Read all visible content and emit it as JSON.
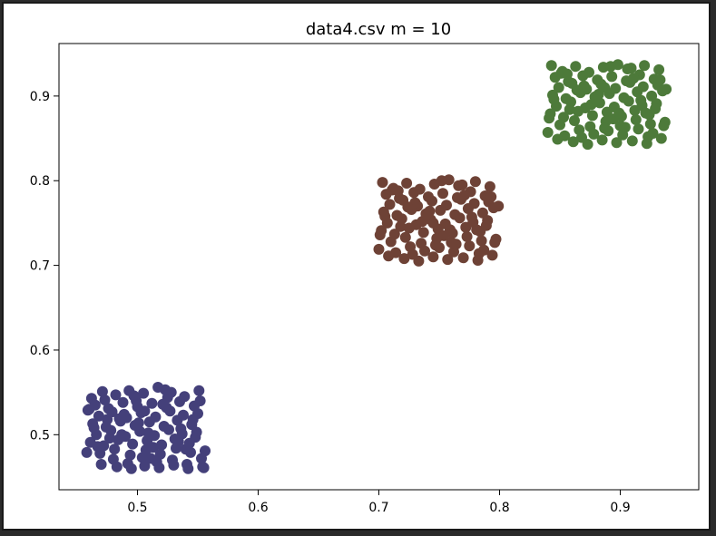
{
  "chart_data": {
    "type": "scatter",
    "title": "data4.csv m = 10",
    "xlabel": "",
    "ylabel": "",
    "xlim": [
      0.435,
      0.965
    ],
    "ylim": [
      0.435,
      0.962
    ],
    "xticks": [
      0.5,
      0.6,
      0.7,
      0.8,
      0.9
    ],
    "xtick_labels": [
      "0.5",
      "0.6",
      "0.7",
      "0.8",
      "0.9"
    ],
    "yticks": [
      0.5,
      0.6,
      0.7,
      0.8,
      0.9
    ],
    "ytick_labels": [
      "0.5",
      "0.6",
      "0.7",
      "0.8",
      "0.9"
    ],
    "grid": false,
    "legend": "none",
    "series": [
      {
        "color": "#44407a",
        "x": [
          0.462,
          0.471,
          0.482,
          0.493,
          0.505,
          0.517,
          0.528,
          0.539,
          0.551,
          0.465,
          0.476,
          0.488,
          0.5,
          0.512,
          0.524,
          0.535,
          0.547,
          0.468,
          0.479,
          0.491,
          0.503,
          0.515,
          0.527,
          0.538,
          0.55,
          0.463,
          0.474,
          0.486,
          0.498,
          0.51,
          0.522,
          0.533,
          0.545,
          0.466,
          0.478,
          0.49,
          0.502,
          0.514,
          0.526,
          0.537,
          0.549,
          0.461,
          0.472,
          0.484,
          0.496,
          0.508,
          0.52,
          0.531,
          0.543,
          0.469,
          0.481,
          0.494,
          0.507,
          0.519,
          0.532,
          0.544,
          0.556,
          0.459,
          0.473,
          0.485,
          0.497,
          0.509,
          0.521,
          0.534,
          0.546,
          0.467,
          0.48,
          0.492,
          0.504,
          0.516,
          0.529,
          0.541,
          0.553,
          0.464,
          0.477,
          0.489,
          0.501,
          0.513,
          0.525,
          0.536,
          0.548,
          0.47,
          0.483,
          0.495,
          0.506,
          0.518,
          0.53,
          0.542,
          0.554,
          0.46,
          0.475,
          0.487,
          0.499,
          0.511,
          0.523,
          0.54,
          0.552,
          0.458,
          0.555,
          0.506
        ],
        "y": [
          0.543,
          0.551,
          0.547,
          0.552,
          0.549,
          0.556,
          0.55,
          0.545,
          0.552,
          0.535,
          0.531,
          0.538,
          0.533,
          0.537,
          0.532,
          0.539,
          0.534,
          0.522,
          0.527,
          0.52,
          0.526,
          0.521,
          0.528,
          0.523,
          0.525,
          0.513,
          0.509,
          0.516,
          0.511,
          0.515,
          0.51,
          0.517,
          0.512,
          0.5,
          0.505,
          0.498,
          0.504,
          0.499,
          0.506,
          0.501,
          0.503,
          0.491,
          0.487,
          0.494,
          0.489,
          0.493,
          0.488,
          0.495,
          0.49,
          0.478,
          0.483,
          0.476,
          0.482,
          0.477,
          0.484,
          0.479,
          0.481,
          0.529,
          0.541,
          0.519,
          0.546,
          0.502,
          0.536,
          0.492,
          0.518,
          0.486,
          0.471,
          0.466,
          0.473,
          0.468,
          0.47,
          0.465,
          0.472,
          0.508,
          0.496,
          0.524,
          0.514,
          0.485,
          0.544,
          0.507,
          0.497,
          0.465,
          0.462,
          0.46,
          0.463,
          0.461,
          0.464,
          0.46,
          0.462,
          0.53,
          0.518,
          0.5,
          0.54,
          0.472,
          0.553,
          0.483,
          0.54,
          0.479,
          0.461,
          0.528
        ]
      },
      {
        "color": "#6e4236",
        "x": [
          0.703,
          0.712,
          0.723,
          0.734,
          0.746,
          0.758,
          0.769,
          0.78,
          0.792,
          0.706,
          0.717,
          0.729,
          0.741,
          0.753,
          0.765,
          0.776,
          0.788,
          0.709,
          0.72,
          0.732,
          0.744,
          0.756,
          0.768,
          0.779,
          0.791,
          0.704,
          0.715,
          0.727,
          0.739,
          0.751,
          0.763,
          0.774,
          0.786,
          0.707,
          0.719,
          0.731,
          0.743,
          0.755,
          0.767,
          0.778,
          0.79,
          0.702,
          0.713,
          0.725,
          0.737,
          0.749,
          0.761,
          0.772,
          0.784,
          0.71,
          0.722,
          0.735,
          0.748,
          0.76,
          0.773,
          0.785,
          0.797,
          0.7,
          0.714,
          0.726,
          0.738,
          0.75,
          0.762,
          0.775,
          0.787,
          0.708,
          0.721,
          0.733,
          0.745,
          0.757,
          0.77,
          0.782,
          0.794,
          0.705,
          0.718,
          0.73,
          0.742,
          0.754,
          0.766,
          0.777,
          0.789,
          0.711,
          0.724,
          0.736,
          0.747,
          0.759,
          0.771,
          0.783,
          0.795,
          0.701,
          0.716,
          0.728,
          0.74,
          0.752,
          0.764,
          0.781,
          0.793,
          0.799,
          0.796,
          0.745
        ],
        "y": [
          0.798,
          0.791,
          0.797,
          0.79,
          0.796,
          0.801,
          0.795,
          0.799,
          0.793,
          0.784,
          0.779,
          0.786,
          0.781,
          0.785,
          0.78,
          0.787,
          0.782,
          0.772,
          0.777,
          0.77,
          0.776,
          0.771,
          0.778,
          0.773,
          0.775,
          0.763,
          0.759,
          0.766,
          0.761,
          0.765,
          0.76,
          0.767,
          0.762,
          0.75,
          0.755,
          0.748,
          0.754,
          0.749,
          0.756,
          0.751,
          0.753,
          0.741,
          0.737,
          0.744,
          0.739,
          0.743,
          0.738,
          0.745,
          0.74,
          0.728,
          0.733,
          0.726,
          0.732,
          0.727,
          0.734,
          0.729,
          0.731,
          0.719,
          0.715,
          0.722,
          0.717,
          0.721,
          0.716,
          0.723,
          0.718,
          0.711,
          0.708,
          0.705,
          0.71,
          0.707,
          0.709,
          0.706,
          0.712,
          0.758,
          0.746,
          0.774,
          0.764,
          0.735,
          0.794,
          0.757,
          0.747,
          0.789,
          0.769,
          0.752,
          0.724,
          0.742,
          0.783,
          0.714,
          0.768,
          0.736,
          0.788,
          0.713,
          0.757,
          0.8,
          0.725,
          0.742,
          0.781,
          0.77,
          0.727,
          0.75
        ]
      },
      {
        "color": "#4d7a3a",
        "x": [
          0.843,
          0.852,
          0.863,
          0.874,
          0.886,
          0.898,
          0.909,
          0.92,
          0.932,
          0.846,
          0.857,
          0.869,
          0.881,
          0.893,
          0.905,
          0.916,
          0.928,
          0.849,
          0.86,
          0.872,
          0.884,
          0.896,
          0.908,
          0.919,
          0.931,
          0.844,
          0.855,
          0.867,
          0.879,
          0.891,
          0.903,
          0.914,
          0.926,
          0.847,
          0.859,
          0.871,
          0.883,
          0.895,
          0.907,
          0.918,
          0.93,
          0.842,
          0.853,
          0.865,
          0.877,
          0.889,
          0.901,
          0.912,
          0.924,
          0.85,
          0.862,
          0.875,
          0.888,
          0.9,
          0.913,
          0.925,
          0.937,
          0.84,
          0.854,
          0.866,
          0.878,
          0.89,
          0.902,
          0.915,
          0.927,
          0.848,
          0.861,
          0.873,
          0.885,
          0.897,
          0.91,
          0.922,
          0.934,
          0.845,
          0.858,
          0.87,
          0.882,
          0.894,
          0.906,
          0.917,
          0.929,
          0.851,
          0.864,
          0.876,
          0.887,
          0.899,
          0.911,
          0.923,
          0.935,
          0.841,
          0.856,
          0.868,
          0.88,
          0.892,
          0.904,
          0.921,
          0.933,
          0.938,
          0.936,
          0.887
        ],
        "y": [
          0.936,
          0.929,
          0.935,
          0.928,
          0.934,
          0.937,
          0.933,
          0.936,
          0.931,
          0.922,
          0.917,
          0.924,
          0.919,
          0.923,
          0.918,
          0.925,
          0.92,
          0.91,
          0.915,
          0.908,
          0.914,
          0.909,
          0.916,
          0.911,
          0.913,
          0.901,
          0.897,
          0.904,
          0.899,
          0.903,
          0.898,
          0.905,
          0.9,
          0.888,
          0.893,
          0.886,
          0.892,
          0.887,
          0.894,
          0.889,
          0.891,
          0.879,
          0.875,
          0.882,
          0.877,
          0.881,
          0.876,
          0.883,
          0.878,
          0.866,
          0.871,
          0.864,
          0.87,
          0.865,
          0.872,
          0.867,
          0.869,
          0.857,
          0.853,
          0.86,
          0.855,
          0.859,
          0.854,
          0.861,
          0.856,
          0.849,
          0.846,
          0.843,
          0.848,
          0.845,
          0.847,
          0.844,
          0.85,
          0.896,
          0.884,
          0.912,
          0.902,
          0.873,
          0.932,
          0.895,
          0.885,
          0.927,
          0.907,
          0.89,
          0.862,
          0.88,
          0.921,
          0.852,
          0.906,
          0.874,
          0.926,
          0.851,
          0.895,
          0.935,
          0.863,
          0.88,
          0.919,
          0.908,
          0.865,
          0.91
        ]
      }
    ]
  }
}
